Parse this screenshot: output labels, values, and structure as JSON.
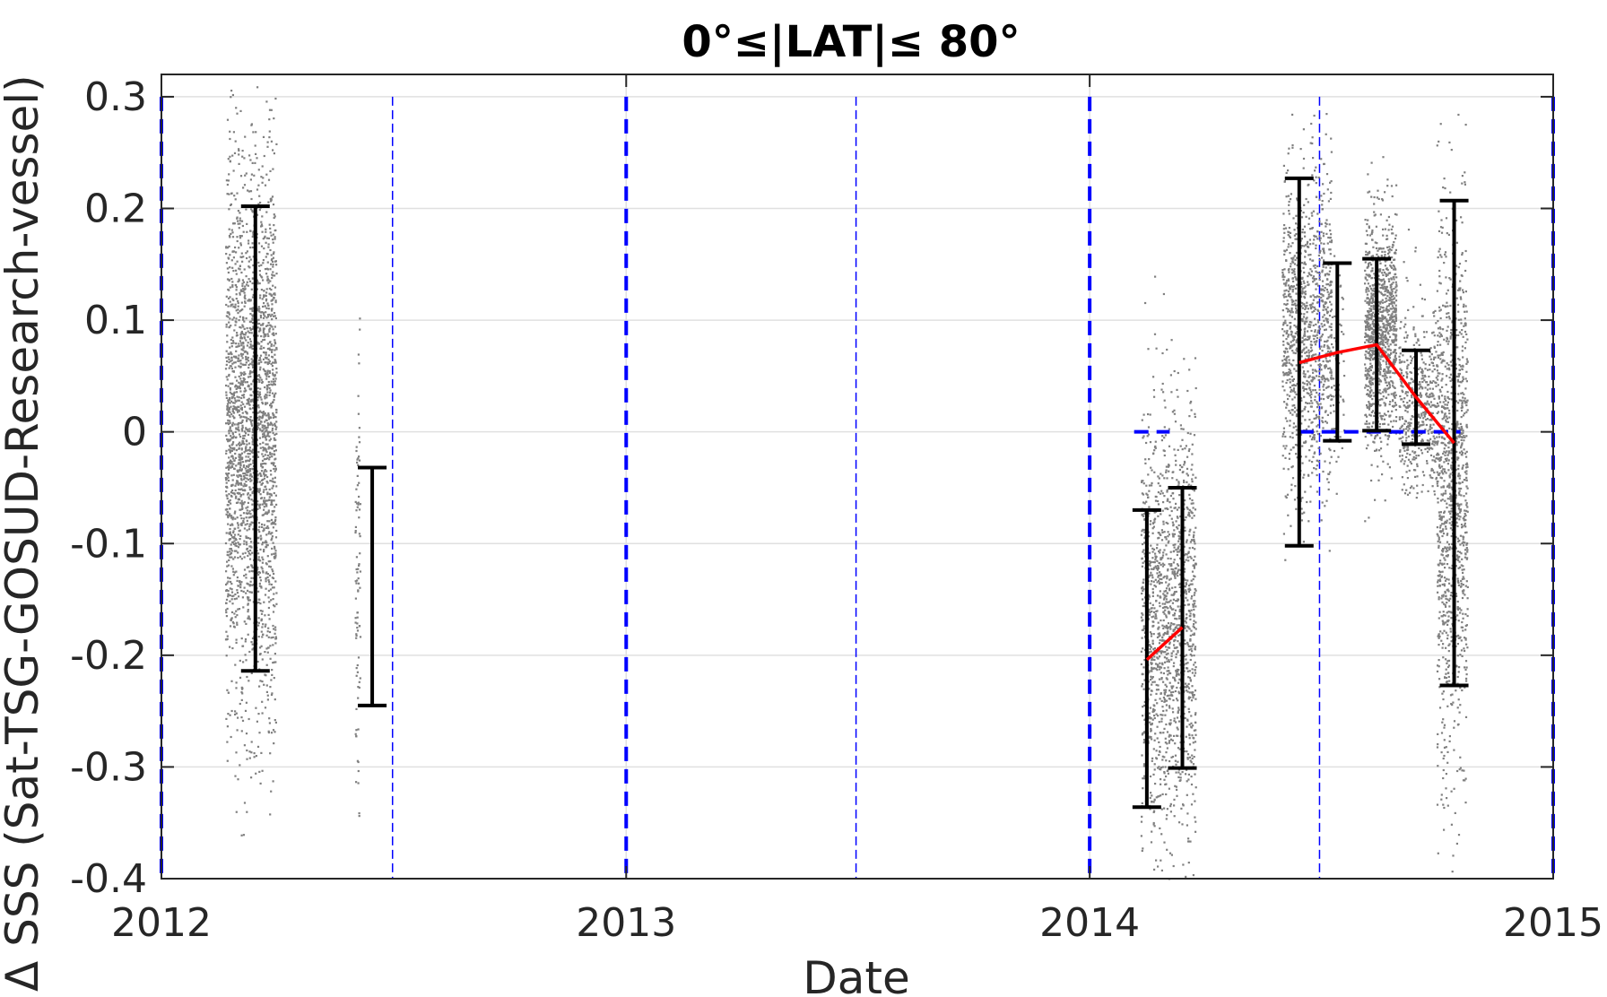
{
  "chart_data": {
    "type": "scatter",
    "title": "0°≤|LAT|≤ 80°",
    "xlabel": "Date",
    "ylabel": "Δ SSS (Sat-TSG-GOSUD-Research-vessel)",
    "xlim": [
      "2012-01-01",
      "2015-01-01"
    ],
    "ylim": [
      -0.4,
      0.32
    ],
    "x_ticks": [
      "2012",
      "2013",
      "2014",
      "2015"
    ],
    "y_ticks": [
      0.3,
      0.2,
      0.1,
      0,
      -0.1,
      -0.2,
      -0.3,
      -0.4
    ],
    "y_tick_labels": [
      "0.3",
      "0.2",
      "0.1",
      "0",
      "-0.1",
      "-0.2",
      "-0.3",
      "-0.4"
    ],
    "grid": true,
    "colors": {
      "scatter": "#808080",
      "errorbar": "#000000",
      "mean_line": "#ff0000",
      "year_lines": "#0000ff",
      "zero_segments": "#0000ff",
      "grid": "#e0e0e0",
      "axes": "#262626"
    },
    "vertical_year_lines": [
      "2012-01-01",
      "2013-01-01",
      "2014-01-01",
      "2015-01-01"
    ],
    "vertical_halfyear_lines": [
      "2012-07-01",
      "2013-07-01",
      "2014-07-01"
    ],
    "zero_segments": [
      {
        "x_start": "2014-02-05",
        "x_end": "2014-03-05",
        "y": 0
      },
      {
        "x_start": "2014-06-15",
        "x_end": "2014-10-20",
        "y": 0
      }
    ],
    "errorbars": [
      {
        "x": "2012-03-15",
        "y_low": -0.214,
        "y_high": 0.202
      },
      {
        "x": "2012-06-15",
        "y_low": -0.245,
        "y_high": -0.032
      },
      {
        "x": "2014-02-15",
        "y_low": -0.336,
        "y_high": -0.07
      },
      {
        "x": "2014-03-15",
        "y_low": -0.301,
        "y_high": -0.05
      },
      {
        "x": "2014-06-15",
        "y_low": -0.102,
        "y_high": 0.227
      },
      {
        "x": "2014-07-15",
        "y_low": -0.008,
        "y_high": 0.151
      },
      {
        "x": "2014-08-15",
        "y_low": 0.001,
        "y_high": 0.155
      },
      {
        "x": "2014-09-15",
        "y_low": -0.011,
        "y_high": 0.073
      },
      {
        "x": "2014-10-15",
        "y_low": -0.227,
        "y_high": 0.207
      }
    ],
    "mean_line_segments": [
      [
        {
          "x": "2014-02-15",
          "y": -0.204
        },
        {
          "x": "2014-03-15",
          "y": -0.175
        }
      ],
      [
        {
          "x": "2014-06-15",
          "y": 0.062
        },
        {
          "x": "2014-07-15",
          "y": 0.071
        },
        {
          "x": "2014-08-15",
          "y": 0.078
        },
        {
          "x": "2014-09-15",
          "y": 0.031
        },
        {
          "x": "2014-10-15",
          "y": -0.01
        }
      ]
    ],
    "scatter_clusters": [
      {
        "x_start": "2012-02-20",
        "x_end": "2012-03-31",
        "y_min": -0.39,
        "y_max": 0.31,
        "center": 0.0,
        "spread": 0.12,
        "n": 2400
      },
      {
        "x_start": "2012-06-01",
        "x_end": "2012-06-05",
        "y_min": -0.4,
        "y_max": 0.12,
        "center": -0.1,
        "spread": 0.13,
        "n": 90
      },
      {
        "x_start": "2014-02-10",
        "x_end": "2014-03-25",
        "y_min": -0.4,
        "y_max": 0.18,
        "center": -0.17,
        "spread": 0.09,
        "n": 1500
      },
      {
        "x_start": "2014-06-01",
        "x_end": "2014-07-10",
        "y_min": -0.3,
        "y_max": 0.31,
        "center": 0.09,
        "spread": 0.07,
        "n": 1100
      },
      {
        "x_start": "2014-07-10",
        "x_end": "2014-07-20",
        "y_min": -0.07,
        "y_max": 0.16,
        "center": 0.04,
        "spread": 0.05,
        "n": 60
      },
      {
        "x_start": "2014-08-05",
        "x_end": "2014-08-30",
        "y_min": -0.14,
        "y_max": 0.31,
        "center": 0.09,
        "spread": 0.05,
        "n": 1100
      },
      {
        "x_start": "2014-09-01",
        "x_end": "2014-10-01",
        "y_min": -0.06,
        "y_max": 0.2,
        "center": 0.02,
        "spread": 0.04,
        "n": 500
      },
      {
        "x_start": "2014-10-01",
        "x_end": "2014-10-25",
        "y_min": -0.4,
        "y_max": 0.31,
        "center": -0.05,
        "spread": 0.12,
        "n": 1100
      }
    ]
  }
}
